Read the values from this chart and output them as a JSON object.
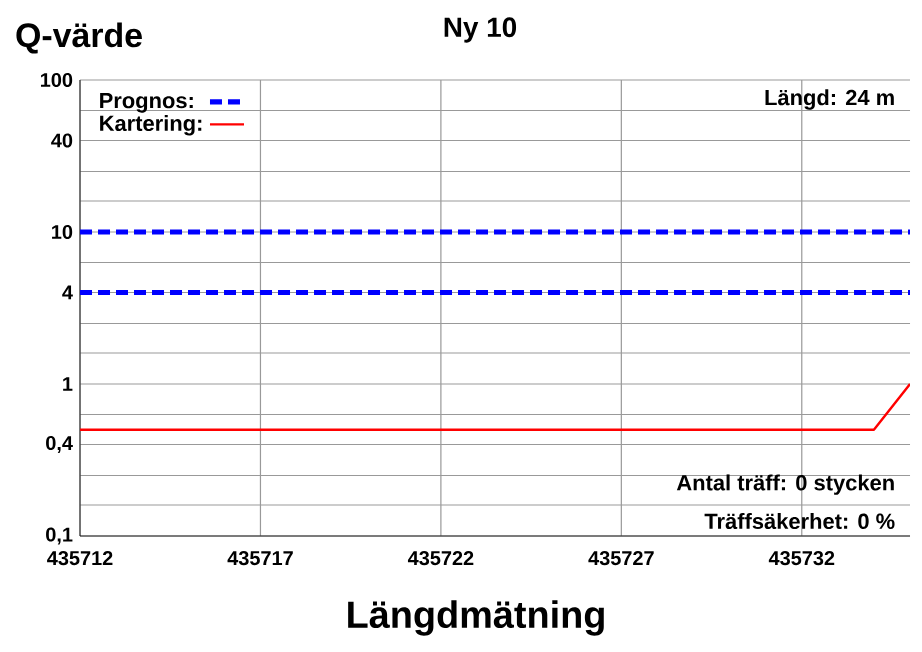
{
  "chart_data": {
    "type": "line",
    "title": "Ny 10",
    "ylabel": "Q-värde",
    "xlabel": "Längdmätning",
    "log": "y",
    "grid": true,
    "legend": "top left",
    "xlim": [
      435712,
      435735
    ],
    "xticks": [
      435712,
      435717,
      435722,
      435727,
      435732
    ],
    "ylim": [
      0.1,
      100
    ],
    "yticks": [
      {
        "value": 0.1,
        "label": "0,1"
      },
      {
        "value": 0.16,
        "label": null
      },
      {
        "value": 0.25,
        "label": null
      },
      {
        "value": 0.4,
        "label": "0,4"
      },
      {
        "value": 0.63,
        "label": null
      },
      1,
      {
        "value": 1.6,
        "label": null
      },
      {
        "value": 2.5,
        "label": null
      },
      4,
      {
        "value": 6.3,
        "label": null
      },
      10,
      {
        "value": 16,
        "label": null
      },
      {
        "value": 25,
        "label": null
      },
      40,
      {
        "value": 63,
        "label": null
      },
      100
    ],
    "series": [
      {
        "name": "Prognos:",
        "color": "#0000ff",
        "line_style": "dashed",
        "x": [
          435712,
          435735
        ],
        "values": [
          10,
          10
        ]
      },
      {
        "color": "#0000ff",
        "line_style": "dashed",
        "x": [
          435712,
          435735
        ],
        "values": [
          4,
          4
        ]
      },
      {
        "name": "Kartering:",
        "color": "#ff0000",
        "line_style": "solid",
        "x": [
          435712,
          435734,
          435735
        ],
        "values": [
          0.5,
          0.5,
          1
        ]
      }
    ],
    "annotations": [
      "Längd: 24 m",
      "Antal träff: 0 stycken",
      "Träffsäkerhet: 0 %"
    ]
  }
}
